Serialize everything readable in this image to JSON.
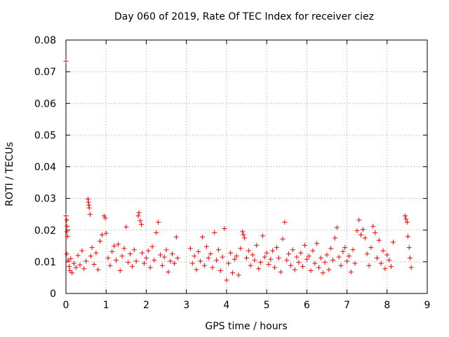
{
  "chart_data": {
    "type": "scatter",
    "title": "Day 060 of 2019, Rate Of TEC Index for receiver ciez",
    "xlabel": "GPS time / hours",
    "ylabel": "ROTI / TECUs",
    "xlim": [
      0,
      9
    ],
    "ylim": [
      0,
      0.08
    ],
    "xticks": [
      "0",
      "1",
      "2",
      "3",
      "4",
      "5",
      "6",
      "7",
      "8",
      "9"
    ],
    "yticks": [
      "0",
      "0.01",
      "0.02",
      "0.03",
      "0.04",
      "0.05",
      "0.06",
      "0.07",
      "0.08"
    ],
    "grid": true,
    "marker": "+",
    "color": "#ff0000",
    "series": [
      {
        "name": "ROTI",
        "points": [
          [
            0.0,
            0.0733
          ],
          [
            0.0,
            0.0245
          ],
          [
            0.02,
            0.0232
          ],
          [
            0.03,
            0.0212
          ],
          [
            0.02,
            0.0195
          ],
          [
            0.04,
            0.018
          ],
          [
            0.02,
            0.0125
          ],
          [
            0.05,
            0.0105
          ],
          [
            0.08,
            0.0085
          ],
          [
            0.1,
            0.0072
          ],
          [
            0.12,
            0.011
          ],
          [
            0.15,
            0.0065
          ],
          [
            0.2,
            0.0095
          ],
          [
            0.25,
            0.0082
          ],
          [
            0.3,
            0.012
          ],
          [
            0.35,
            0.009
          ],
          [
            0.4,
            0.0135
          ],
          [
            0.45,
            0.0078
          ],
          [
            0.5,
            0.0102
          ],
          [
            0.55,
            0.0298
          ],
          [
            0.56,
            0.0288
          ],
          [
            0.57,
            0.0279
          ],
          [
            0.58,
            0.027
          ],
          [
            0.6,
            0.025
          ],
          [
            0.62,
            0.0118
          ],
          [
            0.65,
            0.0145
          ],
          [
            0.7,
            0.0092
          ],
          [
            0.75,
            0.0128
          ],
          [
            0.8,
            0.0075
          ],
          [
            0.85,
            0.0165
          ],
          [
            0.9,
            0.0185
          ],
          [
            0.95,
            0.0245
          ],
          [
            0.98,
            0.0238
          ],
          [
            1.0,
            0.019
          ],
          [
            1.05,
            0.0112
          ],
          [
            1.1,
            0.0088
          ],
          [
            1.15,
            0.0132
          ],
          [
            1.2,
            0.015
          ],
          [
            1.25,
            0.0105
          ],
          [
            1.3,
            0.0155
          ],
          [
            1.35,
            0.0072
          ],
          [
            1.4,
            0.0118
          ],
          [
            1.45,
            0.0142
          ],
          [
            1.5,
            0.021
          ],
          [
            1.55,
            0.0098
          ],
          [
            1.6,
            0.0125
          ],
          [
            1.65,
            0.0085
          ],
          [
            1.7,
            0.0138
          ],
          [
            1.75,
            0.0102
          ],
          [
            1.8,
            0.0245
          ],
          [
            1.82,
            0.0255
          ],
          [
            1.85,
            0.023
          ],
          [
            1.88,
            0.0218
          ],
          [
            1.9,
            0.0128
          ],
          [
            1.95,
            0.0095
          ],
          [
            2.0,
            0.0112
          ],
          [
            2.05,
            0.0135
          ],
          [
            2.1,
            0.0082
          ],
          [
            2.15,
            0.0148
          ],
          [
            2.2,
            0.0105
          ],
          [
            2.25,
            0.0192
          ],
          [
            2.3,
            0.0225
          ],
          [
            2.35,
            0.0122
          ],
          [
            2.4,
            0.0088
          ],
          [
            2.45,
            0.0115
          ],
          [
            2.5,
            0.0138
          ],
          [
            2.55,
            0.0068
          ],
          [
            2.6,
            0.0102
          ],
          [
            2.65,
            0.0125
          ],
          [
            2.7,
            0.0095
          ],
          [
            2.75,
            0.0178
          ],
          [
            2.78,
            0.0112
          ],
          [
            3.1,
            0.0142
          ],
          [
            3.15,
            0.0095
          ],
          [
            3.2,
            0.0118
          ],
          [
            3.25,
            0.0075
          ],
          [
            3.3,
            0.0132
          ],
          [
            3.35,
            0.0102
          ],
          [
            3.4,
            0.0178
          ],
          [
            3.45,
            0.0088
          ],
          [
            3.5,
            0.0148
          ],
          [
            3.55,
            0.0112
          ],
          [
            3.6,
            0.0125
          ],
          [
            3.65,
            0.0082
          ],
          [
            3.7,
            0.0192
          ],
          [
            3.75,
            0.0105
          ],
          [
            3.8,
            0.0138
          ],
          [
            3.85,
            0.0072
          ],
          [
            3.9,
            0.0115
          ],
          [
            3.95,
            0.0205
          ],
          [
            4.0,
            0.0042
          ],
          [
            4.05,
            0.0095
          ],
          [
            4.1,
            0.0128
          ],
          [
            4.15,
            0.0065
          ],
          [
            4.2,
            0.0108
          ],
          [
            4.25,
            0.0118
          ],
          [
            4.3,
            0.0058
          ],
          [
            4.35,
            0.0142
          ],
          [
            4.4,
            0.0195
          ],
          [
            4.42,
            0.0185
          ],
          [
            4.45,
            0.0175
          ],
          [
            4.5,
            0.0112
          ],
          [
            4.55,
            0.0135
          ],
          [
            4.6,
            0.0088
          ],
          [
            4.65,
            0.0122
          ],
          [
            4.7,
            0.0105
          ],
          [
            4.75,
            0.0152
          ],
          [
            4.8,
            0.0078
          ],
          [
            4.85,
            0.0098
          ],
          [
            4.9,
            0.0182
          ],
          [
            4.95,
            0.0115
          ],
          [
            5.0,
            0.0128
          ],
          [
            5.05,
            0.0092
          ],
          [
            5.1,
            0.0108
          ],
          [
            5.15,
            0.0135
          ],
          [
            5.2,
            0.0082
          ],
          [
            5.25,
            0.0145
          ],
          [
            5.3,
            0.0112
          ],
          [
            5.35,
            0.0068
          ],
          [
            5.4,
            0.0172
          ],
          [
            5.45,
            0.0225
          ],
          [
            5.5,
            0.0105
          ],
          [
            5.55,
            0.0125
          ],
          [
            5.6,
            0.0088
          ],
          [
            5.65,
            0.0138
          ],
          [
            5.7,
            0.0075
          ],
          [
            5.75,
            0.0115
          ],
          [
            5.8,
            0.0098
          ],
          [
            5.85,
            0.0128
          ],
          [
            5.9,
            0.0085
          ],
          [
            5.95,
            0.0152
          ],
          [
            6.0,
            0.0108
          ],
          [
            6.05,
            0.0118
          ],
          [
            6.1,
            0.0072
          ],
          [
            6.15,
            0.0135
          ],
          [
            6.2,
            0.0095
          ],
          [
            6.25,
            0.0158
          ],
          [
            6.3,
            0.0082
          ],
          [
            6.35,
            0.0112
          ],
          [
            6.4,
            0.0065
          ],
          [
            6.45,
            0.0098
          ],
          [
            6.5,
            0.0122
          ],
          [
            6.55,
            0.0075
          ],
          [
            6.6,
            0.0142
          ],
          [
            6.65,
            0.0105
          ],
          [
            6.7,
            0.0175
          ],
          [
            6.75,
            0.0208
          ],
          [
            6.8,
            0.0115
          ],
          [
            6.85,
            0.0088
          ],
          [
            6.9,
            0.0132
          ],
          [
            6.95,
            0.0145
          ],
          [
            7.0,
            0.0102
          ],
          [
            7.05,
            0.0118
          ],
          [
            7.1,
            0.0068
          ],
          [
            7.15,
            0.0138
          ],
          [
            7.2,
            0.0095
          ],
          [
            7.25,
            0.0198
          ],
          [
            7.3,
            0.0232
          ],
          [
            7.35,
            0.0185
          ],
          [
            7.4,
            0.0202
          ],
          [
            7.45,
            0.0175
          ],
          [
            7.5,
            0.0125
          ],
          [
            7.55,
            0.0088
          ],
          [
            7.6,
            0.0145
          ],
          [
            7.65,
            0.0212
          ],
          [
            7.7,
            0.0192
          ],
          [
            7.75,
            0.0112
          ],
          [
            7.8,
            0.0168
          ],
          [
            7.85,
            0.0095
          ],
          [
            7.9,
            0.0135
          ],
          [
            7.95,
            0.0078
          ],
          [
            8.0,
            0.0122
          ],
          [
            8.05,
            0.0105
          ],
          [
            8.1,
            0.0085
          ],
          [
            8.15,
            0.0162
          ],
          [
            8.45,
            0.0245
          ],
          [
            8.47,
            0.0235
          ],
          [
            8.5,
            0.0225
          ],
          [
            8.52,
            0.018
          ],
          [
            8.55,
            0.0145
          ],
          [
            8.57,
            0.0112
          ],
          [
            8.6,
            0.0082
          ]
        ]
      }
    ]
  }
}
